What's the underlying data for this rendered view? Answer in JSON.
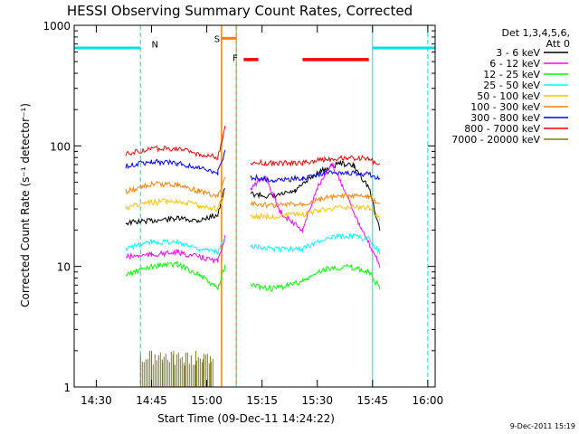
{
  "chart_data": {
    "type": "line",
    "title": "HESSI Observing Summary Count Rates, Corrected",
    "xlabel": "Start Time (09-Dec-11 14:24:22)",
    "ylabel": "Corrected Count Rate (s⁻¹ detector⁻¹)",
    "yscale": "log",
    "ylim": [
      1,
      1000
    ],
    "xlim": [
      "14:24",
      "16:02"
    ],
    "x_ticks": [
      "14:30",
      "14:45",
      "15:00",
      "15:15",
      "15:30",
      "15:45",
      "16:00"
    ],
    "y_ticks": [
      "1",
      "10",
      "100",
      "1000"
    ],
    "date_stamp": "9-Dec-2011 15:19",
    "legend": {
      "header": [
        "Det 1,3,4,5,6,",
        "Att 0"
      ],
      "placement": "right"
    },
    "series": [
      {
        "name": "3 - 6 keV",
        "color": "#000000",
        "x": [
          "14:38",
          "14:45",
          "14:52",
          "14:58",
          "15:03",
          "15:05",
          "15:12",
          "15:18",
          "15:24",
          "15:30",
          "15:36",
          "15:40",
          "15:44",
          "15:47"
        ],
        "values": [
          23,
          24,
          25,
          24,
          27,
          45,
          40,
          38,
          42,
          60,
          72,
          68,
          45,
          20
        ]
      },
      {
        "name": "6 - 12 keV",
        "color": "#ff00ff",
        "x": [
          "14:38",
          "14:45",
          "14:52",
          "14:58",
          "15:03",
          "15:05",
          "15:12",
          "15:16",
          "15:20",
          "15:26",
          "15:30",
          "15:34",
          "15:38",
          "15:42",
          "15:46",
          "15:47"
        ],
        "values": [
          12,
          12.5,
          13,
          12,
          11,
          18,
          45,
          55,
          28,
          20,
          45,
          70,
          40,
          20,
          12,
          10
        ]
      },
      {
        "name": "12 - 25 keV",
        "color": "#00ff00",
        "x": [
          "14:38",
          "14:45",
          "14:52",
          "14:58",
          "15:03",
          "15:05",
          "15:12",
          "15:18",
          "15:26",
          "15:32",
          "15:38",
          "15:44",
          "15:47"
        ],
        "values": [
          8.5,
          10,
          10.5,
          8.5,
          6.5,
          10,
          7,
          6.5,
          7.5,
          9.5,
          10,
          9,
          6.5
        ]
      },
      {
        "name": "25 - 50 keV",
        "color": "#00ffff",
        "x": [
          "14:38",
          "14:45",
          "14:52",
          "14:58",
          "15:03",
          "15:05",
          "15:12",
          "15:18",
          "15:26",
          "15:32",
          "15:38",
          "15:44",
          "15:47"
        ],
        "values": [
          14,
          16,
          16,
          14,
          13,
          18,
          15,
          14,
          14,
          17,
          18,
          17,
          13
        ]
      },
      {
        "name": "50 - 100 keV",
        "color": "#ffc000",
        "x": [
          "14:38",
          "14:45",
          "14:52",
          "14:58",
          "15:03",
          "15:05",
          "15:12",
          "15:18",
          "15:26",
          "15:32",
          "15:38",
          "15:44",
          "15:47"
        ],
        "values": [
          31,
          34,
          35,
          32,
          30,
          42,
          26,
          26,
          27,
          30,
          31,
          31,
          25
        ]
      },
      {
        "name": "100 - 300 keV",
        "color": "#ff8000",
        "x": [
          "14:38",
          "14:45",
          "14:52",
          "14:58",
          "15:03",
          "15:05",
          "15:12",
          "15:18",
          "15:26",
          "15:32",
          "15:38",
          "15:44",
          "15:47"
        ],
        "values": [
          42,
          48,
          48,
          42,
          38,
          55,
          33,
          32,
          33,
          37,
          38,
          38,
          32
        ]
      },
      {
        "name": "300 - 800 keV",
        "color": "#0000ff",
        "x": [
          "14:38",
          "14:45",
          "14:52",
          "14:58",
          "15:03",
          "15:05",
          "15:12",
          "15:18",
          "15:26",
          "15:32",
          "15:38",
          "15:44",
          "15:47"
        ],
        "values": [
          68,
          74,
          72,
          65,
          60,
          90,
          55,
          52,
          54,
          60,
          60,
          58,
          52
        ]
      },
      {
        "name": "800 - 7000 keV",
        "color": "#ff0000",
        "x": [
          "14:38",
          "14:45",
          "14:52",
          "14:58",
          "15:03",
          "15:05",
          "15:12",
          "15:18",
          "15:26",
          "15:32",
          "15:38",
          "15:44",
          "15:47"
        ],
        "values": [
          85,
          95,
          95,
          85,
          80,
          140,
          72,
          72,
          72,
          78,
          80,
          78,
          70
        ]
      },
      {
        "name": "7000 - 20000 keV",
        "color": "#808000",
        "x": [
          "14:42",
          "14:45",
          "14:48",
          "14:51",
          "14:54",
          "14:57",
          "14:59",
          "15:01"
        ],
        "values": [
          1.4,
          2,
          1.6,
          2,
          1.5,
          2,
          1.7,
          1.8
        ]
      }
    ],
    "annotations": [
      {
        "label": "N",
        "color": "#00cccc"
      },
      {
        "label": "S",
        "color": "#ff8000"
      },
      {
        "label": "F",
        "color": "#ff8000"
      }
    ]
  }
}
